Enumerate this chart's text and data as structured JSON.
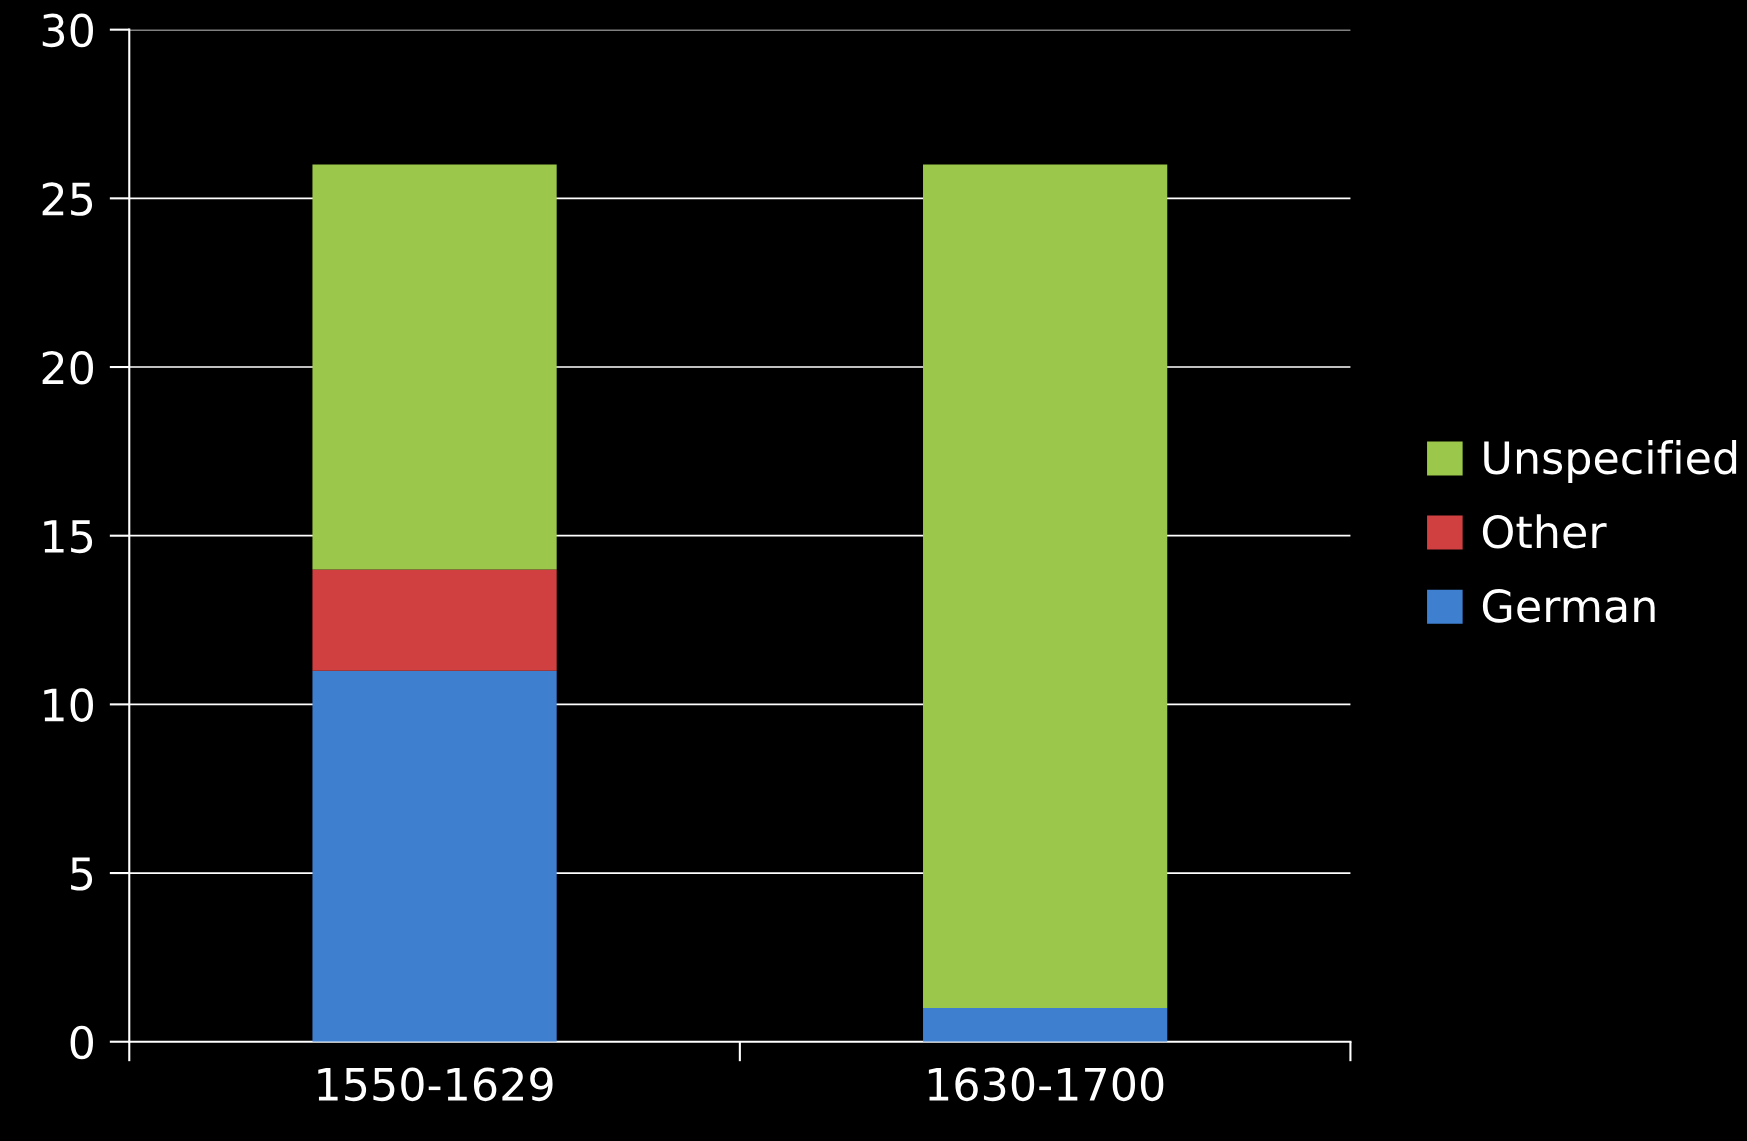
{
  "chart_data": {
    "type": "bar",
    "stacked": true,
    "categories": [
      "1550-1629",
      "1630-1700"
    ],
    "series": [
      {
        "name": "German",
        "color": "#3f7fd0",
        "values": [
          11,
          1
        ]
      },
      {
        "name": "Other",
        "color": "#d04040",
        "values": [
          3,
          0
        ]
      },
      {
        "name": "Unspecified",
        "color": "#9bc84a",
        "values": [
          12,
          25
        ]
      }
    ],
    "ylim": [
      0,
      30
    ],
    "yticks": [
      0,
      5,
      10,
      15,
      20,
      25,
      30
    ],
    "grid": "y",
    "legend": "right"
  }
}
